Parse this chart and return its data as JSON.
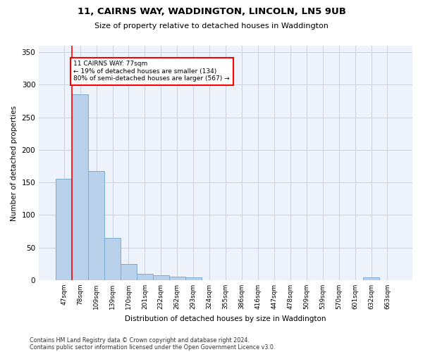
{
  "title": "11, CAIRNS WAY, WADDINGTON, LINCOLN, LN5 9UB",
  "subtitle": "Size of property relative to detached houses in Waddington",
  "xlabel": "Distribution of detached houses by size in Waddington",
  "ylabel": "Number of detached properties",
  "bar_color": "#b8d0ea",
  "bar_edge_color": "#7aadd4",
  "background_color": "#eef2fb",
  "grid_color": "#c8d0e0",
  "categories": [
    "47sqm",
    "78sqm",
    "109sqm",
    "139sqm",
    "170sqm",
    "201sqm",
    "232sqm",
    "262sqm",
    "293sqm",
    "324sqm",
    "355sqm",
    "386sqm",
    "416sqm",
    "447sqm",
    "478sqm",
    "509sqm",
    "539sqm",
    "570sqm",
    "601sqm",
    "632sqm",
    "663sqm"
  ],
  "values": [
    156,
    285,
    168,
    65,
    25,
    10,
    7,
    5,
    4,
    0,
    0,
    0,
    0,
    0,
    0,
    0,
    0,
    0,
    0,
    4,
    0
  ],
  "ylim": [
    0,
    360
  ],
  "yticks": [
    0,
    50,
    100,
    150,
    200,
    250,
    300,
    350
  ],
  "property_line_bin": 1,
  "annotation_text": "11 CAIRNS WAY: 77sqm\n← 19% of detached houses are smaller (134)\n80% of semi-detached houses are larger (567) →",
  "annotation_box_color": "white",
  "annotation_box_edge": "red",
  "red_line_color": "red",
  "footer_line1": "Contains HM Land Registry data © Crown copyright and database right 2024.",
  "footer_line2": "Contains public sector information licensed under the Open Government Licence v3.0."
}
